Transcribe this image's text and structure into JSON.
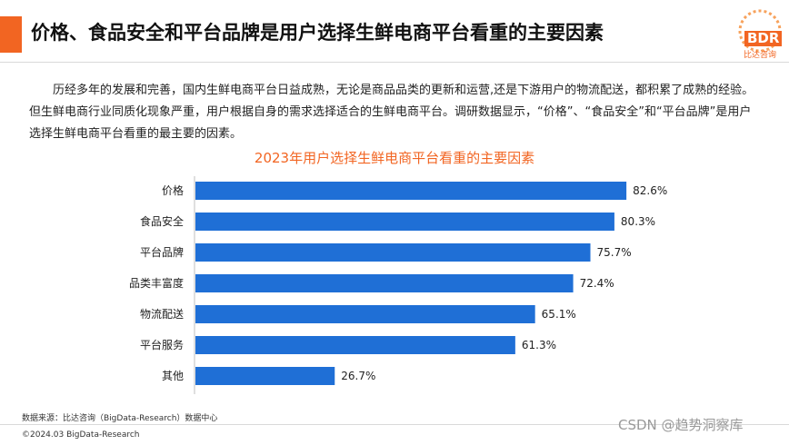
{
  "header": {
    "title": "价格、食品安全和平台品牌是用户选择生鲜电商平台看重的主要因素",
    "logo_text": "BDR",
    "logo_sub": "比达咨询"
  },
  "body_text": "历经多年的发展和完善，国内生鲜电商平台日益成熟，无论是商品品类的更新和运营,还是下游用户的物流配送，都积累了成熟的经验。但生鲜电商行业同质化现象严重，用户根据自身的需求选择适合的生鲜电商平台。调研数据显示，“价格”、“食品安全”和“平台品牌”是用户选择生鲜电商平台看重的最主要的因素。",
  "chart_data": {
    "type": "bar",
    "orientation": "horizontal",
    "title": "2023年用户选择生鲜电商平台看重的主要因素",
    "categories": [
      "价格",
      "食品安全",
      "平台品牌",
      "品类丰富度",
      "物流配送",
      "平台服务",
      "其他"
    ],
    "values": [
      82.6,
      80.3,
      75.7,
      72.4,
      65.1,
      61.3,
      26.7
    ],
    "value_labels": [
      "82.6%",
      "80.3%",
      "75.7%",
      "72.4%",
      "65.1%",
      "61.3%",
      "26.7%"
    ],
    "unit": "%",
    "xlim": [
      0,
      100
    ],
    "bar_color": "#1f6fd6",
    "grid": false,
    "legend": "none"
  },
  "footer": {
    "source": "数据来源：比达咨询（BigData-Research）数据中心",
    "copyright": "©2024.03 BigData-Research",
    "watermark": "CSDN @趋势洞察库"
  },
  "colors": {
    "accent": "#f26522",
    "bar": "#1f6fd6"
  }
}
